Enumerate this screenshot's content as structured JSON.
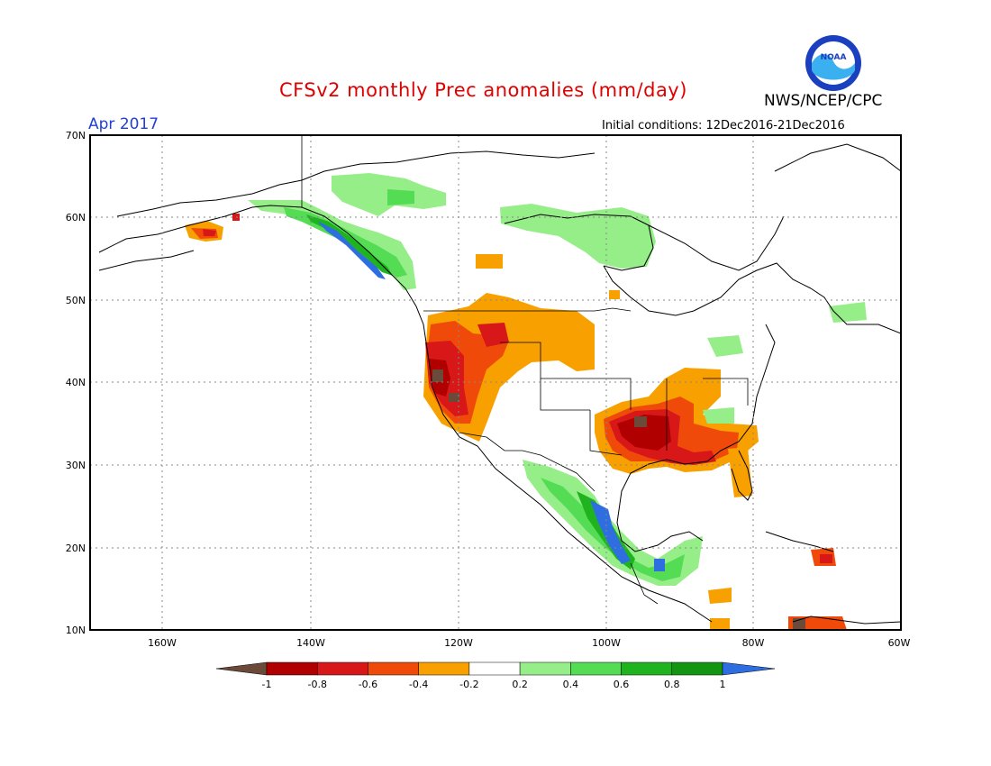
{
  "header": {
    "title": "CFSv2 monthly Prec anomalies (mm/day)",
    "month": "Apr 2017",
    "org": "NWS/NCEP/CPC",
    "init": "Initial conditions: 12Dec2016-21Dec2016",
    "logo_text": "NOAA"
  },
  "map": {
    "lat_labels": [
      "70N",
      "60N",
      "50N",
      "40N",
      "30N",
      "20N",
      "10N"
    ],
    "lon_labels": [
      "160W",
      "140W",
      "120W",
      "100W",
      "80W",
      "60W"
    ]
  },
  "legend": {
    "tick_labels": [
      "-1",
      "-0.8",
      "-0.6",
      "-0.4",
      "-0.2",
      "0.2",
      "0.4",
      "0.6",
      "0.8",
      "1"
    ],
    "colors": [
      "#6b4a3a",
      "#b00000",
      "#d81818",
      "#f04a0a",
      "#f7a000",
      "#ffffff",
      "#96ee88",
      "#54dc54",
      "#1fb41f",
      "#129612",
      "#2e6ee0"
    ]
  }
}
